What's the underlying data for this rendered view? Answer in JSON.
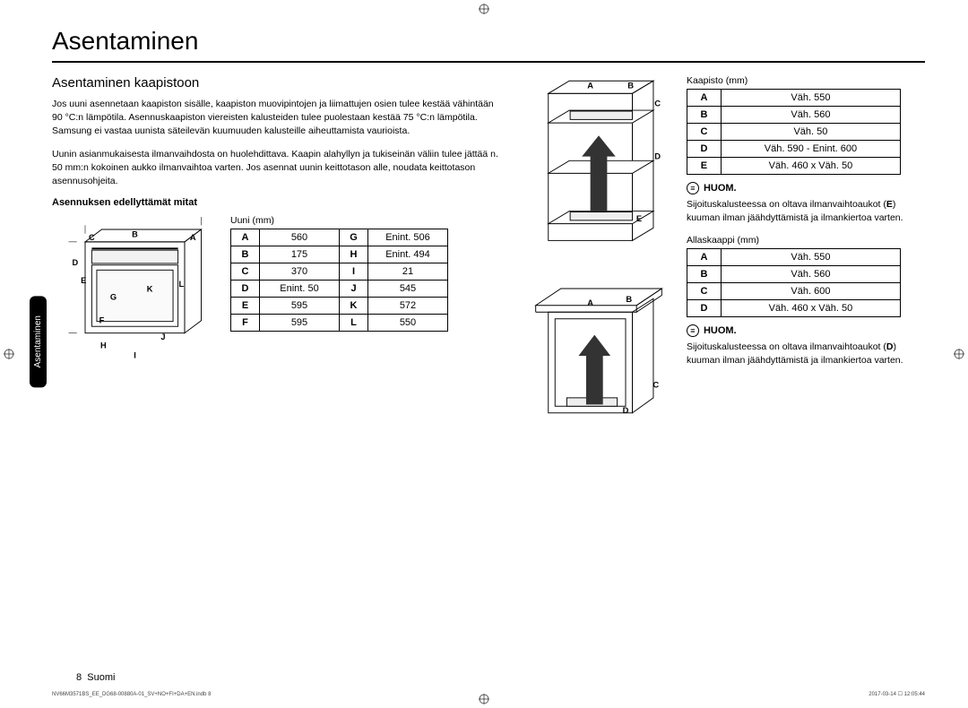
{
  "title": "Asentaminen",
  "subtitle": "Asentaminen kaapistoon",
  "side_tab": "Asentaminen",
  "para1": "Jos uuni asennetaan kaapiston sisälle, kaapiston muovipintojen ja liimattujen osien tulee kestää vähintään 90 °C:n lämpötila. Asennuskaapiston viereisten kalusteiden tulee puolestaan kestää 75 °C:n lämpötila. Samsung ei vastaa uunista säteilevän kuumuuden kalusteille aiheuttamista vaurioista.",
  "para2": "Uunin asianmukaisesta ilmanvaihdosta on huolehdittava. Kaapin alahyllyn ja tukiseinän väliin tulee jättää n. 50 mm:n kokoinen aukko ilmanvaihtoa varten. Jos asennat uunin keittotason alle, noudata keittotason asennusohjeita.",
  "dims_heading": "Asennuksen edellyttämät mitat",
  "uuni_caption": "Uuni (mm)",
  "uuni_rows": [
    [
      "A",
      "560",
      "G",
      "Enint. 506"
    ],
    [
      "B",
      "175",
      "H",
      "Enint. 494"
    ],
    [
      "C",
      "370",
      "I",
      "21"
    ],
    [
      "D",
      "Enint. 50",
      "J",
      "545"
    ],
    [
      "E",
      "595",
      "K",
      "572"
    ],
    [
      "F",
      "595",
      "L",
      "550"
    ]
  ],
  "kaapisto_caption": "Kaapisto (mm)",
  "kaapisto_rows": [
    [
      "A",
      "Väh. 550"
    ],
    [
      "B",
      "Väh. 560"
    ],
    [
      "C",
      "Väh. 50"
    ],
    [
      "D",
      "Väh. 590 - Enint. 600"
    ],
    [
      "E",
      "Väh. 460 x Väh. 50"
    ]
  ],
  "allas_caption": "Allaskaappi (mm)",
  "allas_rows": [
    [
      "A",
      "Väh. 550"
    ],
    [
      "B",
      "Väh. 560"
    ],
    [
      "C",
      "Väh. 600"
    ],
    [
      "D",
      "Väh. 460 x Väh. 50"
    ]
  ],
  "note_label": "HUOM.",
  "note1_pre": "Sijoituskalusteessa on oltava ilmanvaihtoaukot (",
  "note1_key": "E",
  "note1_post": ") kuuman ilman jäähdyttämistä ja ilmankiertoa varten.",
  "note2_pre": "Sijoituskalusteessa on oltava ilmanvaihtoaukot (",
  "note2_key": "D",
  "note2_post": ") kuuman ilman jäähdyttämistä ja ilmankiertoa varten.",
  "page_number": "8",
  "page_lang": "Suomi",
  "footer_file": "NV66M3571BS_EE_DG68-00880A-01_SV+NO+FI+DA+EN.indb   8",
  "footer_date": "2017-03-14   ☐ 12:05:44",
  "colors": {
    "text": "#000000",
    "bg": "#ffffff",
    "tab_bg": "#000000",
    "tab_fg": "#ffffff",
    "border": "#000000"
  }
}
